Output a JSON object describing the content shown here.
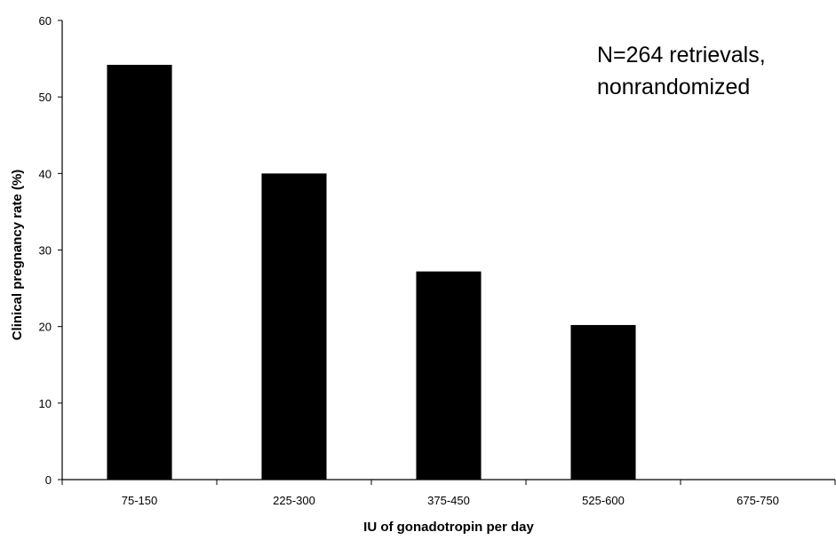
{
  "chart_data": {
    "type": "bar",
    "categories": [
      "75-150",
      "225-300",
      "375-450",
      "525-600",
      "675-750"
    ],
    "values": [
      54.2,
      40.0,
      27.2,
      20.2,
      0
    ],
    "title": "",
    "xlabel": "IU of gonadotropin per day",
    "ylabel": "Clinical pregnancy rate (%)",
    "ylim": [
      0,
      60
    ],
    "yticks": [
      0,
      10,
      20,
      30,
      40,
      50,
      60
    ],
    "annotation": [
      "N=264 retrievals,",
      "nonrandomized"
    ],
    "grid": false,
    "legend": "none",
    "bar_color": "#000000",
    "axis_color": "#000000"
  }
}
